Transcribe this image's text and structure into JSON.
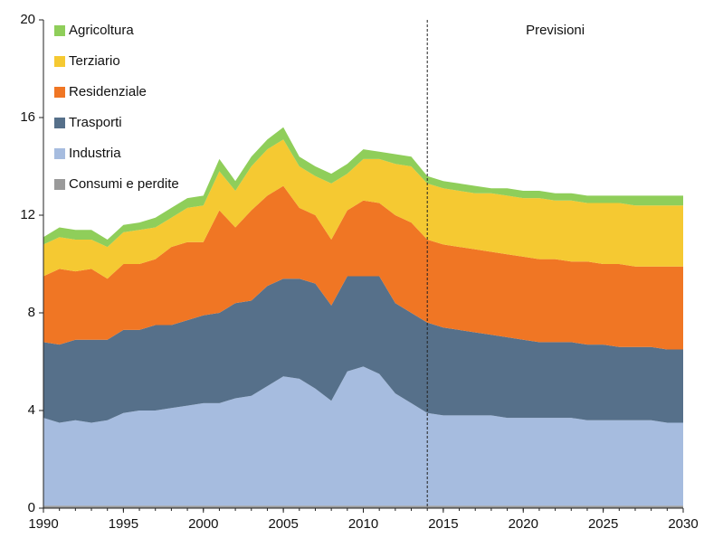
{
  "chart_data": {
    "type": "stacked_area",
    "x": [
      1990,
      1991,
      1992,
      1993,
      1994,
      1995,
      1996,
      1997,
      1998,
      1999,
      2000,
      2001,
      2002,
      2003,
      2004,
      2005,
      2006,
      2007,
      2008,
      2009,
      2010,
      2011,
      2012,
      2013,
      2014,
      2015,
      2016,
      2017,
      2018,
      2019,
      2020,
      2021,
      2022,
      2023,
      2024,
      2025,
      2026,
      2027,
      2028,
      2029,
      2030
    ],
    "xlim": [
      1990,
      2030
    ],
    "xticks": [
      1990,
      1995,
      2000,
      2005,
      2010,
      2015,
      2020,
      2025,
      2030
    ],
    "ylim": [
      0,
      20
    ],
    "yticks": [
      0,
      4,
      8,
      12,
      16,
      20
    ],
    "legend": "top-left",
    "annotation": {
      "text": "Previsioni",
      "x": 2014
    },
    "series": [
      {
        "name": "Consumi e perdite",
        "color": "#9a9a9a",
        "values": [
          0.1,
          0.1,
          0.1,
          0.1,
          0.1,
          0.1,
          0.1,
          0.1,
          0.1,
          0.1,
          0.1,
          0.1,
          0.1,
          0.1,
          0.1,
          0.1,
          0.1,
          0.1,
          0.1,
          0.1,
          0.1,
          0.1,
          0.1,
          0.1,
          0.1,
          0.1,
          0.1,
          0.1,
          0.1,
          0.1,
          0.1,
          0.1,
          0.1,
          0.1,
          0.1,
          0.1,
          0.1,
          0.1,
          0.1,
          0.1,
          0.1
        ]
      },
      {
        "name": "Industria",
        "color": "#a6bcdf",
        "values": [
          3.6,
          3.4,
          3.5,
          3.4,
          3.5,
          3.8,
          3.9,
          3.9,
          4.0,
          4.1,
          4.2,
          4.2,
          4.4,
          4.5,
          4.9,
          5.3,
          5.2,
          4.8,
          4.3,
          5.5,
          5.7,
          5.4,
          4.6,
          4.2,
          3.8,
          3.7,
          3.7,
          3.7,
          3.7,
          3.6,
          3.6,
          3.6,
          3.6,
          3.6,
          3.5,
          3.5,
          3.5,
          3.5,
          3.5,
          3.4,
          3.4
        ]
      },
      {
        "name": "Trasporti",
        "color": "#56708a",
        "values": [
          3.1,
          3.2,
          3.3,
          3.4,
          3.3,
          3.4,
          3.3,
          3.5,
          3.4,
          3.5,
          3.6,
          3.7,
          3.9,
          3.9,
          4.1,
          4.0,
          4.1,
          4.3,
          3.9,
          3.9,
          3.7,
          4.0,
          3.7,
          3.7,
          3.7,
          3.6,
          3.5,
          3.4,
          3.3,
          3.3,
          3.2,
          3.1,
          3.1,
          3.1,
          3.1,
          3.1,
          3.0,
          3.0,
          3.0,
          3.0,
          3.0
        ]
      },
      {
        "name": "Residenziale",
        "color": "#f07624",
        "values": [
          2.7,
          3.1,
          2.8,
          2.9,
          2.5,
          2.7,
          2.7,
          2.7,
          3.2,
          3.2,
          3.0,
          4.2,
          3.1,
          3.7,
          3.7,
          3.8,
          2.9,
          2.8,
          2.7,
          2.7,
          3.1,
          3.0,
          3.6,
          3.7,
          3.4,
          3.4,
          3.4,
          3.4,
          3.4,
          3.4,
          3.4,
          3.4,
          3.4,
          3.3,
          3.4,
          3.3,
          3.4,
          3.3,
          3.3,
          3.4,
          3.4
        ]
      },
      {
        "name": "Terziario",
        "color": "#f5c932",
        "values": [
          1.3,
          1.3,
          1.3,
          1.2,
          1.3,
          1.3,
          1.4,
          1.3,
          1.2,
          1.4,
          1.5,
          1.6,
          1.5,
          1.8,
          1.9,
          1.9,
          1.7,
          1.6,
          2.3,
          1.5,
          1.7,
          1.8,
          2.1,
          2.3,
          2.3,
          2.3,
          2.3,
          2.3,
          2.4,
          2.4,
          2.4,
          2.5,
          2.4,
          2.5,
          2.4,
          2.5,
          2.5,
          2.5,
          2.5,
          2.5,
          2.5
        ]
      },
      {
        "name": "Agricoltura",
        "color": "#8fce5a",
        "values": [
          0.3,
          0.4,
          0.4,
          0.4,
          0.3,
          0.3,
          0.3,
          0.4,
          0.4,
          0.4,
          0.4,
          0.5,
          0.4,
          0.4,
          0.4,
          0.5,
          0.4,
          0.4,
          0.4,
          0.4,
          0.4,
          0.3,
          0.4,
          0.4,
          0.3,
          0.3,
          0.3,
          0.3,
          0.2,
          0.3,
          0.3,
          0.3,
          0.3,
          0.3,
          0.3,
          0.3,
          0.3,
          0.4,
          0.4,
          0.4,
          0.4
        ]
      }
    ]
  }
}
